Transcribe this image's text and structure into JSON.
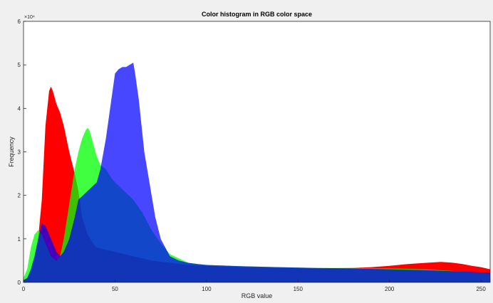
{
  "chart_data": {
    "type": "area",
    "title": "Color histogram in RGB color space",
    "xlabel": "RGB value",
    "ylabel": "Frequency",
    "y_exponent_label": "×10⁴",
    "xlim": [
      0,
      255
    ],
    "ylim": [
      0,
      6
    ],
    "x_ticks": [
      0,
      50,
      100,
      150,
      200,
      250
    ],
    "y_ticks": [
      0,
      1,
      2,
      3,
      4,
      5,
      6
    ],
    "grid": false,
    "legend": "none",
    "series": [
      {
        "color": "#ff0000",
        "opacity": 1.0,
        "x": [
          0,
          2,
          4,
          6,
          8,
          10,
          12,
          14,
          15,
          16,
          18,
          20,
          22,
          25,
          28,
          30,
          32,
          35,
          38,
          40,
          45,
          50,
          60,
          70,
          80,
          90,
          100,
          120,
          140,
          160,
          180,
          190,
          200,
          210,
          220,
          228,
          235,
          240,
          245,
          250,
          255
        ],
        "values": [
          0.05,
          0.1,
          0.2,
          0.5,
          1.0,
          1.9,
          3.6,
          4.4,
          4.5,
          4.4,
          4.1,
          3.9,
          3.6,
          3.0,
          2.5,
          2.1,
          1.5,
          1.1,
          0.9,
          0.8,
          0.75,
          0.7,
          0.6,
          0.5,
          0.45,
          0.4,
          0.38,
          0.35,
          0.33,
          0.32,
          0.33,
          0.35,
          0.38,
          0.42,
          0.45,
          0.47,
          0.45,
          0.42,
          0.38,
          0.35,
          0.3
        ]
      },
      {
        "color": "#00ff00",
        "opacity": 0.75,
        "x": [
          0,
          2,
          4,
          6,
          8,
          10,
          12,
          15,
          18,
          20,
          22,
          25,
          28,
          30,
          32,
          34,
          35,
          36,
          38,
          40,
          42,
          45,
          48,
          50,
          55,
          60,
          65,
          70,
          75,
          80,
          85,
          90,
          100,
          120,
          140,
          160,
          180,
          200,
          220,
          240,
          255
        ],
        "values": [
          0.1,
          0.3,
          0.8,
          1.1,
          1.2,
          1.1,
          0.9,
          0.6,
          0.5,
          0.6,
          1.0,
          1.8,
          2.6,
          3.0,
          3.3,
          3.5,
          3.55,
          3.5,
          3.2,
          2.9,
          2.7,
          2.6,
          2.4,
          2.3,
          2.1,
          1.9,
          1.6,
          1.2,
          0.9,
          0.65,
          0.55,
          0.45,
          0.4,
          0.37,
          0.35,
          0.33,
          0.33,
          0.32,
          0.3,
          0.25,
          0.2
        ]
      },
      {
        "color": "#0000ff",
        "opacity": 0.72,
        "x": [
          0,
          2,
          4,
          6,
          8,
          10,
          12,
          14,
          16,
          18,
          20,
          22,
          25,
          28,
          30,
          35,
          40,
          42,
          45,
          48,
          50,
          52,
          54,
          56,
          58,
          60,
          61,
          62,
          63,
          64,
          65,
          66,
          68,
          70,
          72,
          75,
          80,
          85,
          90,
          95,
          100,
          120,
          140,
          160,
          180,
          200,
          220,
          240,
          255
        ],
        "values": [
          0.05,
          0.1,
          0.3,
          0.6,
          1.0,
          1.35,
          1.3,
          1.1,
          0.9,
          0.7,
          0.6,
          0.7,
          1.0,
          1.5,
          1.9,
          2.1,
          2.3,
          2.6,
          3.3,
          4.2,
          4.8,
          4.9,
          4.95,
          4.95,
          5.0,
          5.05,
          4.8,
          4.5,
          4.2,
          3.8,
          3.4,
          3.0,
          2.5,
          2.0,
          1.5,
          1.0,
          0.6,
          0.5,
          0.45,
          0.42,
          0.4,
          0.37,
          0.35,
          0.33,
          0.32,
          0.3,
          0.28,
          0.25,
          0.22
        ]
      }
    ]
  }
}
